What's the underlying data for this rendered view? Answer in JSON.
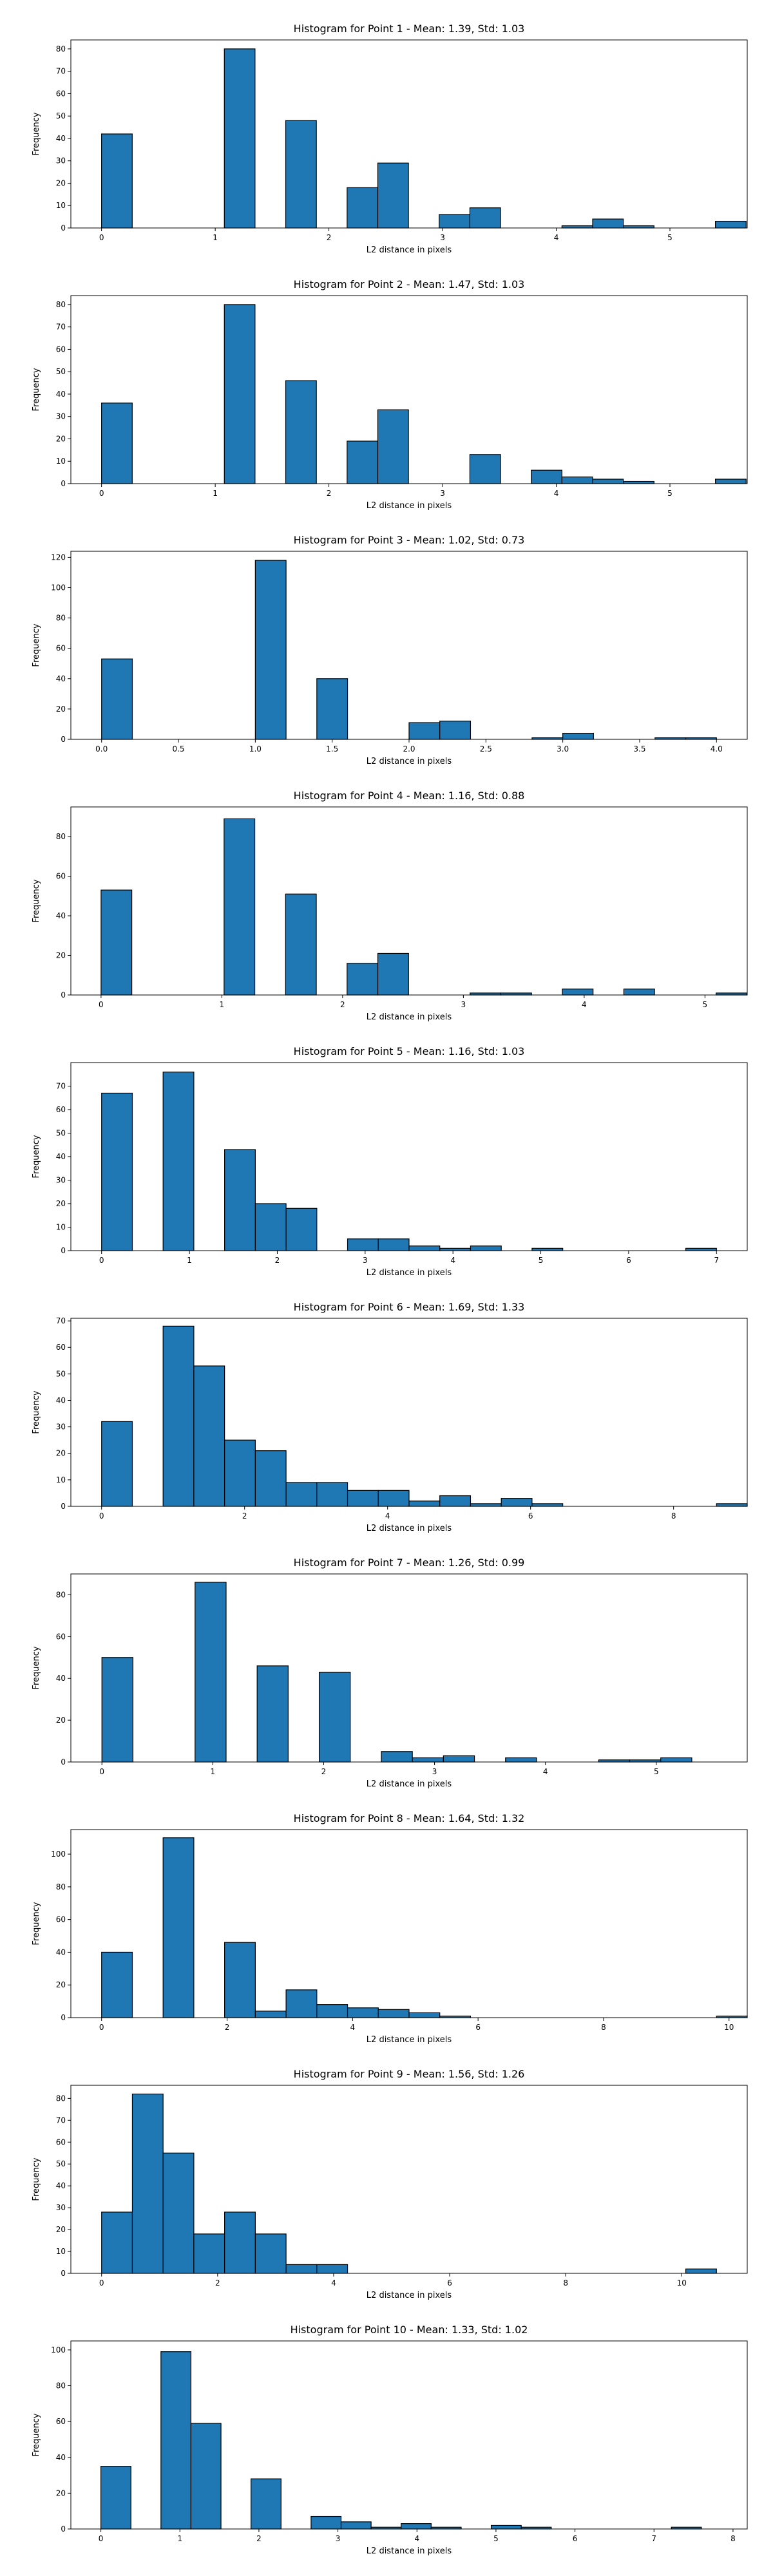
{
  "colors": {
    "bar_fill": "#1f77b4",
    "bar_edge": "#000000",
    "axes": "#000000",
    "background": "#ffffff"
  },
  "chart_data": [
    {
      "type": "bar",
      "title": "Histogram for Point 1 - Mean: 1.39, Std: 1.03",
      "xlabel": "L2 distance in pixels",
      "ylabel": "Frequency",
      "xlim": [
        -0.27,
        5.68
      ],
      "ylim": [
        0,
        84
      ],
      "xticks": [
        0,
        1,
        2,
        3,
        4,
        5
      ],
      "xtick_labels": [
        "0",
        "1",
        "2",
        "3",
        "4",
        "5"
      ],
      "yticks": [
        0,
        10,
        20,
        30,
        40,
        50,
        60,
        70,
        80
      ],
      "bins": {
        "start": 0,
        "width": 0.27
      },
      "values": [
        42,
        0,
        0,
        0,
        80,
        0,
        48,
        0,
        18,
        29,
        0,
        6,
        9,
        0,
        0,
        1,
        4,
        1,
        0,
        0,
        3
      ],
      "grid": false
    },
    {
      "type": "bar",
      "title": "Histogram for Point 2 - Mean: 1.47, Std: 1.03",
      "xlabel": "L2 distance in pixels",
      "ylabel": "Frequency",
      "xlim": [
        -0.27,
        5.68
      ],
      "ylim": [
        0,
        84
      ],
      "xticks": [
        0,
        1,
        2,
        3,
        4,
        5
      ],
      "xtick_labels": [
        "0",
        "1",
        "2",
        "3",
        "4",
        "5"
      ],
      "yticks": [
        0,
        10,
        20,
        30,
        40,
        50,
        60,
        70,
        80
      ],
      "bins": {
        "start": 0,
        "width": 0.27
      },
      "values": [
        36,
        0,
        0,
        0,
        80,
        0,
        46,
        0,
        19,
        33,
        0,
        0,
        13,
        0,
        6,
        3,
        2,
        1,
        0,
        0,
        2
      ],
      "grid": false
    },
    {
      "type": "bar",
      "title": "Histogram for Point 3 - Mean: 1.02, Std: 0.73",
      "xlabel": "L2 distance in pixels",
      "ylabel": "Frequency",
      "xlim": [
        -0.2,
        4.2
      ],
      "ylim": [
        0,
        124
      ],
      "xticks": [
        0,
        0.5,
        1,
        1.5,
        2,
        2.5,
        3,
        3.5,
        4
      ],
      "xtick_labels": [
        "0.0",
        "0.5",
        "1.0",
        "1.5",
        "2.0",
        "2.5",
        "3.0",
        "3.5",
        "4.0"
      ],
      "yticks": [
        0,
        20,
        40,
        60,
        80,
        100,
        120
      ],
      "bins": {
        "start": 0,
        "width": 0.2
      },
      "values": [
        53,
        0,
        0,
        0,
        0,
        118,
        0,
        40,
        0,
        0,
        11,
        12,
        0,
        0,
        1,
        4,
        0,
        0,
        1,
        1
      ],
      "grid": false
    },
    {
      "type": "bar",
      "title": "Histogram for Point 4 - Mean: 1.16, Std: 0.88",
      "xlabel": "L2 distance in pixels",
      "ylabel": "Frequency",
      "xlim": [
        -0.25,
        5.35
      ],
      "ylim": [
        0,
        95
      ],
      "xticks": [
        0,
        1,
        2,
        3,
        4,
        5
      ],
      "xtick_labels": [
        "0",
        "1",
        "2",
        "3",
        "4",
        "5"
      ],
      "yticks": [
        0,
        20,
        40,
        60,
        80
      ],
      "bins": {
        "start": 0,
        "width": 0.2546
      },
      "values": [
        53,
        0,
        0,
        0,
        89,
        0,
        51,
        0,
        16,
        21,
        0,
        0,
        1,
        1,
        0,
        3,
        0,
        3,
        0,
        0,
        1
      ],
      "grid": false
    },
    {
      "type": "bar",
      "title": "Histogram for Point 5 - Mean: 1.16, Std: 1.03",
      "xlabel": "L2 distance in pixels",
      "ylabel": "Frequency",
      "xlim": [
        -0.35,
        7.35
      ],
      "ylim": [
        0,
        80
      ],
      "xticks": [
        0,
        1,
        2,
        3,
        4,
        5,
        6,
        7
      ],
      "xtick_labels": [
        "0",
        "1",
        "2",
        "3",
        "4",
        "5",
        "6",
        "7"
      ],
      "yticks": [
        0,
        10,
        20,
        30,
        40,
        50,
        60,
        70
      ],
      "bins": {
        "start": 0,
        "width": 0.35
      },
      "values": [
        67,
        0,
        76,
        0,
        43,
        20,
        18,
        0,
        5,
        5,
        2,
        1,
        2,
        0,
        1,
        0,
        0,
        0,
        0,
        1
      ],
      "grid": false
    },
    {
      "type": "bar",
      "title": "Histogram for Point 6 - Mean: 1.69, Std: 1.33",
      "xlabel": "L2 distance in pixels",
      "ylabel": "Frequency",
      "xlim": [
        -0.43,
        9.03
      ],
      "ylim": [
        0,
        71
      ],
      "xticks": [
        0,
        2,
        4,
        6,
        8
      ],
      "xtick_labels": [
        "0",
        "2",
        "4",
        "6",
        "8"
      ],
      "yticks": [
        0,
        10,
        20,
        30,
        40,
        50,
        60,
        70
      ],
      "bins": {
        "start": 0,
        "width": 0.43
      },
      "values": [
        32,
        0,
        68,
        53,
        25,
        21,
        9,
        9,
        6,
        6,
        2,
        4,
        1,
        3,
        1,
        0,
        0,
        0,
        0,
        0,
        1
      ],
      "grid": false
    },
    {
      "type": "bar",
      "title": "Histogram for Point 7 - Mean: 1.26, Std: 0.99",
      "xlabel": "L2 distance in pixels",
      "ylabel": "Frequency",
      "xlim": [
        -0.28,
        5.82
      ],
      "ylim": [
        0,
        90
      ],
      "xticks": [
        0,
        1,
        2,
        3,
        4,
        5
      ],
      "xtick_labels": [
        "0",
        "1",
        "2",
        "3",
        "4",
        "5"
      ],
      "yticks": [
        0,
        20,
        40,
        60,
        80
      ],
      "bins": {
        "start": 0,
        "width": 0.28
      },
      "values": [
        50,
        0,
        0,
        86,
        0,
        46,
        0,
        43,
        0,
        5,
        2,
        3,
        0,
        2,
        0,
        0,
        1,
        1,
        2
      ],
      "grid": false
    },
    {
      "type": "bar",
      "title": "Histogram for Point 8 - Mean: 1.64, Std: 1.32",
      "xlabel": "L2 distance in pixels",
      "ylabel": "Frequency",
      "xlim": [
        -0.49,
        10.29
      ],
      "ylim": [
        0,
        115
      ],
      "xticks": [
        0,
        2,
        4,
        6,
        8,
        10
      ],
      "xtick_labels": [
        "0",
        "2",
        "4",
        "6",
        "8",
        "10"
      ],
      "yticks": [
        0,
        20,
        40,
        60,
        80,
        100
      ],
      "bins": {
        "start": 0,
        "width": 0.49
      },
      "values": [
        40,
        0,
        110,
        0,
        46,
        4,
        17,
        8,
        6,
        5,
        3,
        1,
        0,
        0,
        0,
        0,
        0,
        0,
        0,
        0,
        1
      ],
      "grid": false
    },
    {
      "type": "bar",
      "title": "Histogram for Point 9 - Mean: 1.56, Std: 1.26",
      "xlabel": "L2 distance in pixels",
      "ylabel": "Frequency",
      "xlim": [
        -0.53,
        11.13
      ],
      "ylim": [
        0,
        86
      ],
      "xticks": [
        0,
        2,
        4,
        6,
        8,
        10
      ],
      "xtick_labels": [
        "0",
        "2",
        "4",
        "6",
        "8",
        "10"
      ],
      "yticks": [
        0,
        10,
        20,
        30,
        40,
        50,
        60,
        70,
        80
      ],
      "bins": {
        "start": 0,
        "width": 0.53
      },
      "values": [
        28,
        82,
        55,
        18,
        28,
        18,
        4,
        4,
        0,
        0,
        0,
        0,
        0,
        0,
        0,
        0,
        0,
        0,
        0,
        2
      ],
      "grid": false
    },
    {
      "type": "bar",
      "title": "Histogram for Point 10 - Mean: 1.33, Std: 1.02",
      "xlabel": "L2 distance in pixels",
      "ylabel": "Frequency",
      "xlim": [
        -0.38,
        8.18
      ],
      "ylim": [
        0,
        105
      ],
      "xticks": [
        0,
        1,
        2,
        3,
        4,
        5,
        6,
        7,
        8
      ],
      "xtick_labels": [
        "0",
        "1",
        "2",
        "3",
        "4",
        "5",
        "6",
        "7",
        "8"
      ],
      "yticks": [
        0,
        20,
        40,
        60,
        80,
        100
      ],
      "bins": {
        "start": 0,
        "width": 0.38
      },
      "values": [
        35,
        0,
        99,
        59,
        0,
        28,
        0,
        7,
        4,
        1,
        3,
        1,
        0,
        2,
        1,
        0,
        0,
        0,
        0,
        1
      ],
      "grid": false
    }
  ]
}
